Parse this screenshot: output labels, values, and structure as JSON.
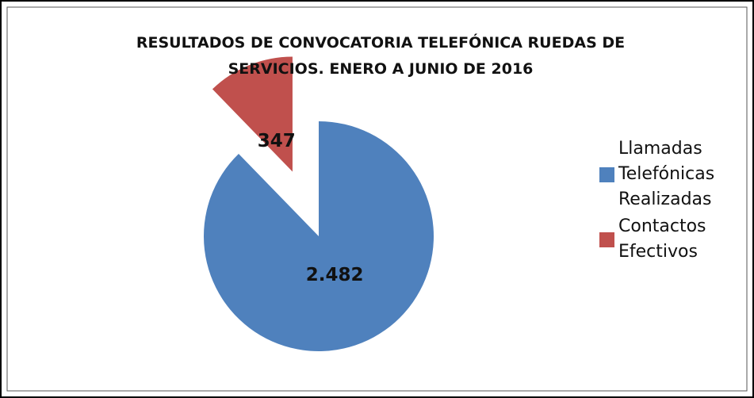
{
  "chart_data": {
    "type": "pie",
    "title": "RESULTADOS DE CONVOCATORIA TELEFÓNICA RUEDAS DE SERVICIOS. ENERO A JUNIO DE 2016",
    "categories": [
      "Llamadas Telefónicas Realizadas",
      "Contactos Efectivos"
    ],
    "values": [
      2482,
      347
    ],
    "value_labels": [
      "2.482",
      "347"
    ],
    "colors": [
      "#4f81bd",
      "#c0504d"
    ],
    "exploded": [
      false,
      true
    ],
    "legend": "right"
  }
}
